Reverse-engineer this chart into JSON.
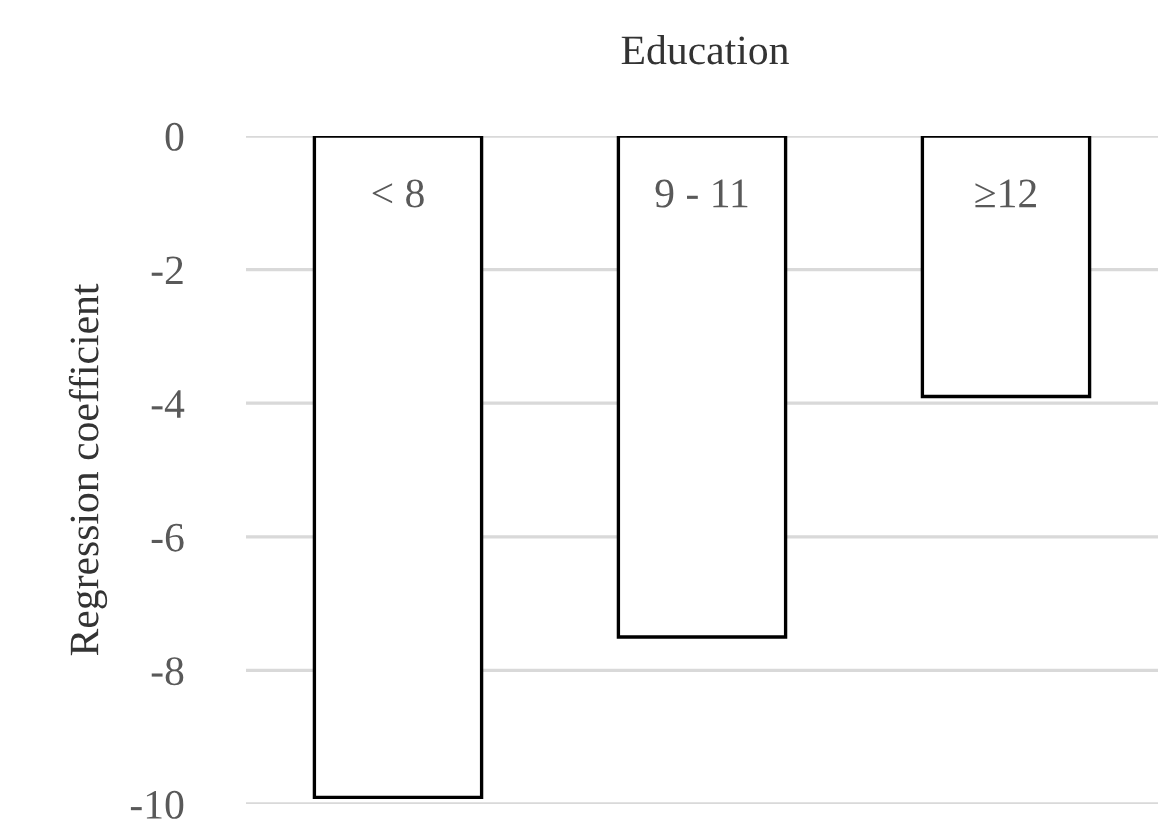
{
  "chart_data": {
    "type": "bar",
    "title": "Education",
    "ylabel": "Regression coefficient",
    "categories": [
      "< 8",
      "9 - 11",
      "≥12"
    ],
    "values": [
      -9.9,
      -7.5,
      -3.9
    ],
    "color": "#ffffff",
    "ylim": [
      -10,
      0
    ],
    "yticks": [
      {
        "value": 0,
        "label": "0"
      },
      {
        "value": -2,
        "label": "-2"
      },
      {
        "value": -4,
        "label": "-4"
      },
      {
        "value": -6,
        "label": "-6"
      },
      {
        "value": -8,
        "label": "-8"
      },
      {
        "value": -10,
        "label": "-10"
      }
    ],
    "grid": "y"
  }
}
